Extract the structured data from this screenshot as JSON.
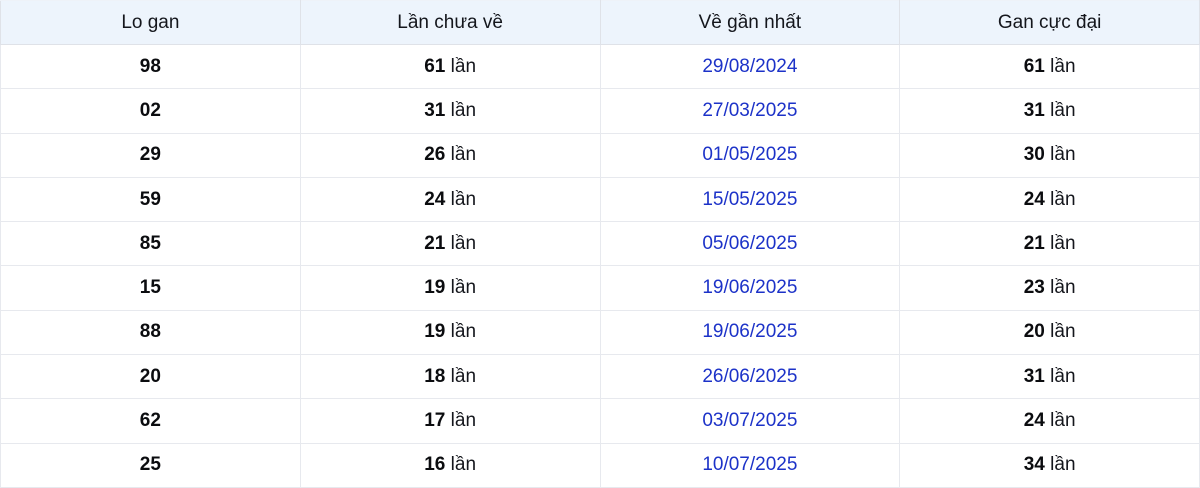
{
  "table": {
    "headers": [
      "Lo gan",
      "Lần chưa về",
      "Về gần nhất",
      "Gan cực đại"
    ],
    "times_suffix": "lần",
    "rows": [
      {
        "lo_gan": "98",
        "lan_chua_ve": "61",
        "ve_gan_nhat": "29/08/2024",
        "gan_cuc_dai": "61"
      },
      {
        "lo_gan": "02",
        "lan_chua_ve": "31",
        "ve_gan_nhat": "27/03/2025",
        "gan_cuc_dai": "31"
      },
      {
        "lo_gan": "29",
        "lan_chua_ve": "26",
        "ve_gan_nhat": "01/05/2025",
        "gan_cuc_dai": "30"
      },
      {
        "lo_gan": "59",
        "lan_chua_ve": "24",
        "ve_gan_nhat": "15/05/2025",
        "gan_cuc_dai": "24"
      },
      {
        "lo_gan": "85",
        "lan_chua_ve": "21",
        "ve_gan_nhat": "05/06/2025",
        "gan_cuc_dai": "21"
      },
      {
        "lo_gan": "15",
        "lan_chua_ve": "19",
        "ve_gan_nhat": "19/06/2025",
        "gan_cuc_dai": "23"
      },
      {
        "lo_gan": "88",
        "lan_chua_ve": "19",
        "ve_gan_nhat": "19/06/2025",
        "gan_cuc_dai": "20"
      },
      {
        "lo_gan": "20",
        "lan_chua_ve": "18",
        "ve_gan_nhat": "26/06/2025",
        "gan_cuc_dai": "31"
      },
      {
        "lo_gan": "62",
        "lan_chua_ve": "17",
        "ve_gan_nhat": "03/07/2025",
        "gan_cuc_dai": "24"
      },
      {
        "lo_gan": "25",
        "lan_chua_ve": "16",
        "ve_gan_nhat": "10/07/2025",
        "gan_cuc_dai": "34"
      }
    ]
  },
  "colors": {
    "header_bg": "#edf4fc",
    "border": "#e7e9ee",
    "header_border": "#dfe2e8",
    "link": "#1c32c8",
    "text": "#14161c"
  }
}
